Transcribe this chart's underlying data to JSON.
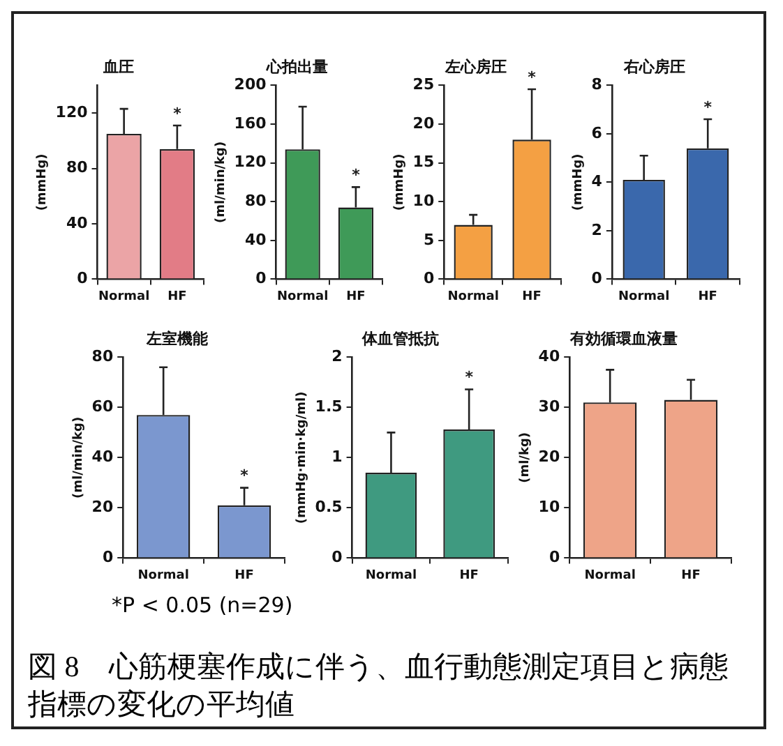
{
  "chart_data": [
    {
      "type": "bar",
      "title": "血圧",
      "ylabel": "(mmHg)",
      "categories": [
        "Normal",
        "HF"
      ],
      "values": [
        105,
        94
      ],
      "colors": [
        "#eba4a6",
        "#e27c86"
      ],
      "errors": [
        [
          105,
          123
        ],
        [
          94,
          111
        ]
      ],
      "ylim": [
        0,
        140
      ],
      "yticks": [
        0,
        40,
        80,
        120
      ],
      "grid": false,
      "annotations": [
        {
          "text": "*",
          "x": "HF",
          "y": 111
        }
      ]
    },
    {
      "type": "bar",
      "title": "心拍出量",
      "ylabel": "(ml/min/kg)",
      "categories": [
        "Normal",
        "HF"
      ],
      "values": [
        134,
        74
      ],
      "color": "#3f9a58",
      "errors": [
        [
          134,
          178
        ],
        [
          74,
          95
        ]
      ],
      "ylim": [
        0,
        200
      ],
      "yticks": [
        0,
        40,
        80,
        120,
        160,
        200
      ],
      "grid": false,
      "annotations": [
        {
          "text": "*",
          "x": "HF",
          "y": 95
        }
      ]
    },
    {
      "type": "bar",
      "title": "左心房圧",
      "ylabel": "(mmHg)",
      "categories": [
        "Normal",
        "HF"
      ],
      "values": [
        7,
        18
      ],
      "color": "#f4a043",
      "errors": [
        [
          7,
          8.3
        ],
        [
          18,
          24.5
        ]
      ],
      "ylim": [
        0,
        25
      ],
      "yticks": [
        0,
        5,
        10,
        15,
        20,
        25
      ],
      "grid": false,
      "annotations": [
        {
          "text": "*",
          "x": "HF",
          "y": 24.5
        }
      ]
    },
    {
      "type": "bar",
      "title": "右心房圧",
      "ylabel": "(mmHg)",
      "categories": [
        "Normal",
        "HF"
      ],
      "values": [
        4.1,
        5.4
      ],
      "color": "#3a68ac",
      "errors": [
        [
          4.1,
          5.1
        ],
        [
          5.4,
          6.6
        ]
      ],
      "ylim": [
        0,
        8
      ],
      "yticks": [
        0,
        2,
        4,
        6,
        8
      ],
      "grid": false,
      "annotations": [
        {
          "text": "*",
          "x": "HF",
          "y": 6.6
        }
      ]
    },
    {
      "type": "bar",
      "title": "左室機能",
      "ylabel": "(ml/min/kg)",
      "categories": [
        "Normal",
        "HF"
      ],
      "values": [
        57,
        21
      ],
      "color": "#7b97cf",
      "errors": [
        [
          57,
          76
        ],
        [
          21,
          28
        ]
      ],
      "ylim": [
        0,
        80
      ],
      "yticks": [
        0,
        20,
        40,
        60,
        80
      ],
      "grid": false,
      "annotations": [
        {
          "text": "*",
          "x": "HF",
          "y": 28
        }
      ]
    },
    {
      "type": "bar",
      "title": "体血管抵抗",
      "ylabel": "(mmHg·min·kg/ml)",
      "categories": [
        "Normal",
        "HF"
      ],
      "values": [
        0.85,
        1.28
      ],
      "color": "#3f9a80",
      "errors": [
        [
          0.85,
          1.25
        ],
        [
          1.28,
          1.68
        ]
      ],
      "ylim": [
        0,
        2
      ],
      "yticks": [
        0,
        0.5,
        1,
        1.5,
        2
      ],
      "grid": false,
      "annotations": [
        {
          "text": "*",
          "x": "HF",
          "y": 1.68
        }
      ]
    },
    {
      "type": "bar",
      "title": "有効循環血液量",
      "ylabel": "(ml/kg)",
      "categories": [
        "Normal",
        "HF"
      ],
      "values": [
        31,
        31.5
      ],
      "color": "#eea488",
      "errors": [
        [
          31,
          37.5
        ],
        [
          31.5,
          35.5
        ]
      ],
      "ylim": [
        0,
        40
      ],
      "yticks": [
        0,
        10,
        20,
        30,
        40
      ],
      "grid": false
    },
    {
      "type": "other",
      "title": "図 8　心筋梗塞作成に伴う、血行動態測定項目と病態指標の変化の平均値",
      "annotations": [
        "*P < 0.05 (n=29)"
      ]
    }
  ]
}
